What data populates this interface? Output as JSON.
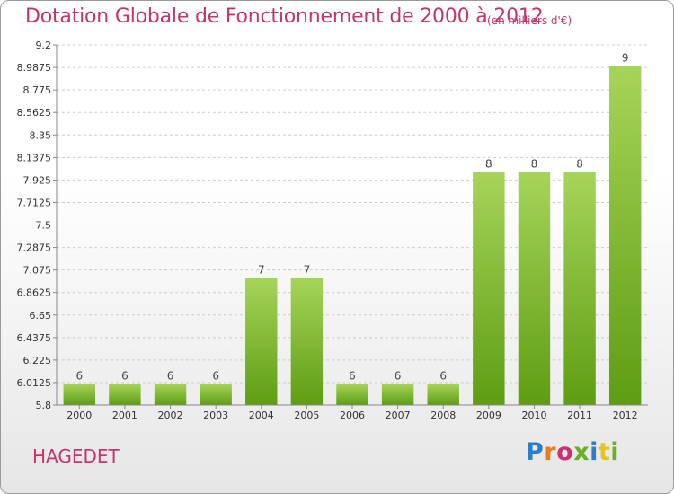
{
  "header": {
    "title": "Dotation Globale de Fonctionnement de 2000 à 2012",
    "subtitle": "(en milliers d'€)"
  },
  "footer": {
    "commune": "HAGEDET",
    "logo": {
      "text": "Proxiti",
      "colors": [
        "#2a7fc8",
        "#e87d1e",
        "#c8336e",
        "#6ab025",
        "#2a7fc8",
        "#e8c21e",
        "#6ab025"
      ]
    }
  },
  "colors": {
    "bar_light": "#a6d45a",
    "bar_dark": "#5e9d12",
    "axis": "#888888",
    "grid": "#cccccc"
  },
  "chart_data": {
    "type": "bar",
    "categories": [
      "2000",
      "2001",
      "2002",
      "2003",
      "2004",
      "2005",
      "2006",
      "2007",
      "2008",
      "2009",
      "2010",
      "2011",
      "2012"
    ],
    "values": [
      6,
      6,
      6,
      6,
      7,
      7,
      6,
      6,
      6,
      8,
      8,
      8,
      9
    ],
    "display_values": [
      6,
      6,
      6,
      6,
      7,
      7,
      6,
      6,
      6,
      8,
      8,
      8,
      9
    ],
    "ylim": [
      5.8,
      9.2
    ],
    "yticks": [
      "9.2",
      "8.9875",
      "8.775",
      "8.5625",
      "8.35",
      "8.1375",
      "7.925",
      "7.7125",
      "7.5",
      "7.2875",
      "7.075",
      "6.8625",
      "6.65",
      "6.4375",
      "6.225",
      "6.0125",
      "5.8"
    ],
    "grid": "horizontal dashed",
    "xlabel": "",
    "ylabel": ""
  }
}
